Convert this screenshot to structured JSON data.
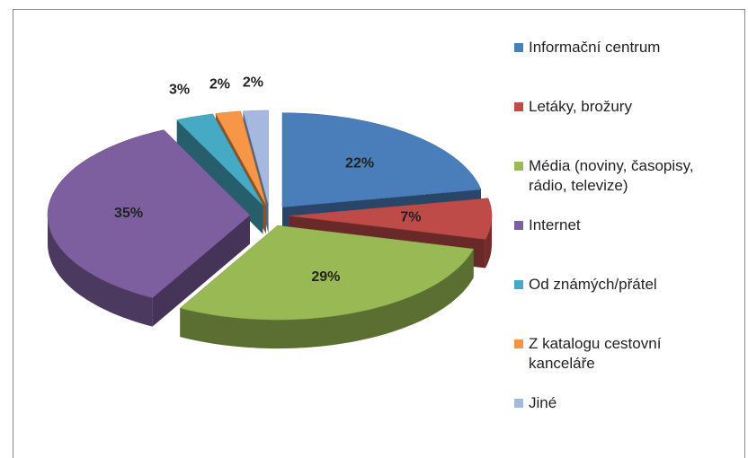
{
  "chart_data": {
    "type": "pie3d",
    "categories": [
      "Informační centrum",
      "Letáky, brožury",
      "Média (noviny, časopisy, rádio, televize)",
      "Internet",
      "Od známých/přátel",
      "Z katalogu cestovní kanceláře",
      "Jiné"
    ],
    "values": [
      22,
      7,
      29,
      35,
      3,
      2,
      2
    ],
    "value_labels": [
      "22%",
      "7%",
      "29%",
      "35%",
      "3%",
      "2%",
      "2%"
    ],
    "colors": [
      "#4a7ebb",
      "#be4b48",
      "#98b954",
      "#7d5fa0",
      "#46aac5",
      "#f79646",
      "#a5b8dd"
    ],
    "legend": "right"
  }
}
